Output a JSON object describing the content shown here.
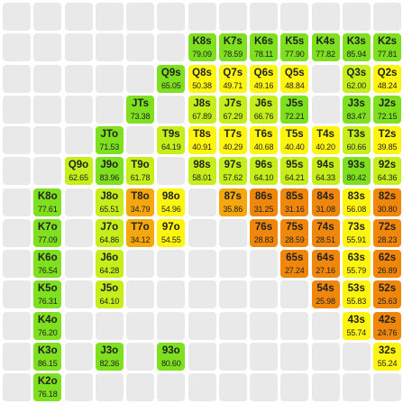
{
  "colors": {
    "empty": "#e9e9e9",
    "green": "#7ee01e",
    "yellow_green": "#c5ee1a",
    "yellow": "#fdf510",
    "orange": "#f5a70c",
    "dark_orange": "#f0870a"
  },
  "cells": [
    {
      "row": 0,
      "col": 0,
      "hand": "",
      "value": "",
      "color": ""
    },
    {
      "row": 1,
      "col": 6,
      "hand": "K8s",
      "value": "79.09",
      "color": "#7ee01e"
    },
    {
      "row": 1,
      "col": 7,
      "hand": "K7s",
      "value": "78.59",
      "color": "#7ee01e"
    },
    {
      "row": 1,
      "col": 8,
      "hand": "K6s",
      "value": "78.11",
      "color": "#7ee01e"
    },
    {
      "row": 1,
      "col": 9,
      "hand": "K5s",
      "value": "77.90",
      "color": "#7ee01e"
    },
    {
      "row": 1,
      "col": 10,
      "hand": "K4s",
      "value": "77.82",
      "color": "#7ee01e"
    },
    {
      "row": 1,
      "col": 11,
      "hand": "K3s",
      "value": "85.94",
      "color": "#7ee01e"
    },
    {
      "row": 1,
      "col": 12,
      "hand": "K2s",
      "value": "77.81",
      "color": "#7ee01e"
    },
    {
      "row": 2,
      "col": 5,
      "hand": "Q9s",
      "value": "65.05",
      "color": "#7ee01e"
    },
    {
      "row": 2,
      "col": 6,
      "hand": "Q8s",
      "value": "50.38",
      "color": "#fdf510"
    },
    {
      "row": 2,
      "col": 7,
      "hand": "Q7s",
      "value": "49.71",
      "color": "#fdf510"
    },
    {
      "row": 2,
      "col": 8,
      "hand": "Q6s",
      "value": "49.16",
      "color": "#fdf510"
    },
    {
      "row": 2,
      "col": 9,
      "hand": "Q5s",
      "value": "48.84",
      "color": "#fdf510"
    },
    {
      "row": 2,
      "col": 11,
      "hand": "Q3s",
      "value": "62.00",
      "color": "#c5ee1a"
    },
    {
      "row": 2,
      "col": 12,
      "hand": "Q2s",
      "value": "48.24",
      "color": "#fdf510"
    },
    {
      "row": 3,
      "col": 4,
      "hand": "JTs",
      "value": "73.38",
      "color": "#7ee01e"
    },
    {
      "row": 3,
      "col": 6,
      "hand": "J8s",
      "value": "67.89",
      "color": "#c5ee1a"
    },
    {
      "row": 3,
      "col": 7,
      "hand": "J7s",
      "value": "67.29",
      "color": "#c5ee1a"
    },
    {
      "row": 3,
      "col": 8,
      "hand": "J6s",
      "value": "66.76",
      "color": "#c5ee1a"
    },
    {
      "row": 3,
      "col": 9,
      "hand": "J5s",
      "value": "72.21",
      "color": "#7ee01e"
    },
    {
      "row": 3,
      "col": 11,
      "hand": "J3s",
      "value": "83.47",
      "color": "#7ee01e"
    },
    {
      "row": 3,
      "col": 12,
      "hand": "J2s",
      "value": "72.15",
      "color": "#7ee01e"
    },
    {
      "row": 4,
      "col": 3,
      "hand": "JTo",
      "value": "71.53",
      "color": "#7ee01e"
    },
    {
      "row": 4,
      "col": 5,
      "hand": "T9s",
      "value": "64.19",
      "color": "#c5ee1a"
    },
    {
      "row": 4,
      "col": 6,
      "hand": "T8s",
      "value": "40.91",
      "color": "#fdf510"
    },
    {
      "row": 4,
      "col": 7,
      "hand": "T7s",
      "value": "40.29",
      "color": "#fdf510"
    },
    {
      "row": 4,
      "col": 8,
      "hand": "T6s",
      "value": "40.68",
      "color": "#fdf510"
    },
    {
      "row": 4,
      "col": 9,
      "hand": "T5s",
      "value": "40.40",
      "color": "#fdf510"
    },
    {
      "row": 4,
      "col": 10,
      "hand": "T4s",
      "value": "40.20",
      "color": "#fdf510"
    },
    {
      "row": 4,
      "col": 11,
      "hand": "T3s",
      "value": "60.66",
      "color": "#c5ee1a"
    },
    {
      "row": 4,
      "col": 12,
      "hand": "T2s",
      "value": "39.85",
      "color": "#fdf510"
    },
    {
      "row": 5,
      "col": 2,
      "hand": "Q9o",
      "value": "62.65",
      "color": "#c5ee1a"
    },
    {
      "row": 5,
      "col": 3,
      "hand": "J9o",
      "value": "83.96",
      "color": "#7ee01e"
    },
    {
      "row": 5,
      "col": 4,
      "hand": "T9o",
      "value": "61.78",
      "color": "#c5ee1a"
    },
    {
      "row": 5,
      "col": 6,
      "hand": "98s",
      "value": "58.01",
      "color": "#c5ee1a"
    },
    {
      "row": 5,
      "col": 7,
      "hand": "97s",
      "value": "57.62",
      "color": "#c5ee1a"
    },
    {
      "row": 5,
      "col": 8,
      "hand": "96s",
      "value": "64.10",
      "color": "#c5ee1a"
    },
    {
      "row": 5,
      "col": 9,
      "hand": "95s",
      "value": "64.21",
      "color": "#c5ee1a"
    },
    {
      "row": 5,
      "col": 10,
      "hand": "94s",
      "value": "64.33",
      "color": "#c5ee1a"
    },
    {
      "row": 5,
      "col": 11,
      "hand": "93s",
      "value": "80.42",
      "color": "#7ee01e"
    },
    {
      "row": 5,
      "col": 12,
      "hand": "92s",
      "value": "64.36",
      "color": "#c5ee1a"
    },
    {
      "row": 6,
      "col": 1,
      "hand": "K8o",
      "value": "77.61",
      "color": "#7ee01e"
    },
    {
      "row": 6,
      "col": 3,
      "hand": "J8o",
      "value": "65.51",
      "color": "#c5ee1a"
    },
    {
      "row": 6,
      "col": 4,
      "hand": "T8o",
      "value": "34.79",
      "color": "#f5a70c"
    },
    {
      "row": 6,
      "col": 5,
      "hand": "98o",
      "value": "54.96",
      "color": "#fdf510"
    },
    {
      "row": 6,
      "col": 7,
      "hand": "87s",
      "value": "35.86",
      "color": "#f5a70c"
    },
    {
      "row": 6,
      "col": 8,
      "hand": "86s",
      "value": "31.25",
      "color": "#f0870a"
    },
    {
      "row": 6,
      "col": 9,
      "hand": "85s",
      "value": "31.16",
      "color": "#f0870a"
    },
    {
      "row": 6,
      "col": 10,
      "hand": "84s",
      "value": "31.08",
      "color": "#f0870a"
    },
    {
      "row": 6,
      "col": 11,
      "hand": "83s",
      "value": "56.08",
      "color": "#fdf510"
    },
    {
      "row": 6,
      "col": 12,
      "hand": "82s",
      "value": "30.80",
      "color": "#f0870a"
    },
    {
      "row": 7,
      "col": 1,
      "hand": "K7o",
      "value": "77.09",
      "color": "#7ee01e"
    },
    {
      "row": 7,
      "col": 3,
      "hand": "J7o",
      "value": "64.86",
      "color": "#c5ee1a"
    },
    {
      "row": 7,
      "col": 4,
      "hand": "T7o",
      "value": "34.12",
      "color": "#f5a70c"
    },
    {
      "row": 7,
      "col": 5,
      "hand": "97o",
      "value": "54.55",
      "color": "#fdf510"
    },
    {
      "row": 7,
      "col": 8,
      "hand": "76s",
      "value": "28.83",
      "color": "#f0870a"
    },
    {
      "row": 7,
      "col": 9,
      "hand": "75s",
      "value": "28.59",
      "color": "#f0870a"
    },
    {
      "row": 7,
      "col": 10,
      "hand": "74s",
      "value": "28.51",
      "color": "#f0870a"
    },
    {
      "row": 7,
      "col": 11,
      "hand": "73s",
      "value": "55.91",
      "color": "#fdf510"
    },
    {
      "row": 7,
      "col": 12,
      "hand": "72s",
      "value": "28.23",
      "color": "#f0870a"
    },
    {
      "row": 8,
      "col": 1,
      "hand": "K6o",
      "value": "76.54",
      "color": "#7ee01e"
    },
    {
      "row": 8,
      "col": 3,
      "hand": "J6o",
      "value": "64.28",
      "color": "#c5ee1a"
    },
    {
      "row": 8,
      "col": 9,
      "hand": "65s",
      "value": "27.24",
      "color": "#f0870a"
    },
    {
      "row": 8,
      "col": 10,
      "hand": "64s",
      "value": "27.16",
      "color": "#f0870a"
    },
    {
      "row": 8,
      "col": 11,
      "hand": "63s",
      "value": "55.79",
      "color": "#fdf510"
    },
    {
      "row": 8,
      "col": 12,
      "hand": "62s",
      "value": "26.89",
      "color": "#f0870a"
    },
    {
      "row": 9,
      "col": 1,
      "hand": "K5o",
      "value": "76.31",
      "color": "#7ee01e"
    },
    {
      "row": 9,
      "col": 3,
      "hand": "J5o",
      "value": "64.10",
      "color": "#c5ee1a"
    },
    {
      "row": 9,
      "col": 10,
      "hand": "54s",
      "value": "25.98",
      "color": "#f0870a"
    },
    {
      "row": 9,
      "col": 11,
      "hand": "53s",
      "value": "55.83",
      "color": "#fdf510"
    },
    {
      "row": 9,
      "col": 12,
      "hand": "52s",
      "value": "25.63",
      "color": "#f0870a"
    },
    {
      "row": 10,
      "col": 1,
      "hand": "K4o",
      "value": "76.20",
      "color": "#7ee01e"
    },
    {
      "row": 10,
      "col": 11,
      "hand": "43s",
      "value": "55.74",
      "color": "#fdf510"
    },
    {
      "row": 10,
      "col": 12,
      "hand": "42s",
      "value": "24.76",
      "color": "#f0870a"
    },
    {
      "row": 11,
      "col": 1,
      "hand": "K3o",
      "value": "86.15",
      "color": "#7ee01e"
    },
    {
      "row": 11,
      "col": 3,
      "hand": "J3o",
      "value": "82.36",
      "color": "#7ee01e"
    },
    {
      "row": 11,
      "col": 5,
      "hand": "93o",
      "value": "80.60",
      "color": "#7ee01e"
    },
    {
      "row": 11,
      "col": 12,
      "hand": "32s",
      "value": "55.24",
      "color": "#fdf510"
    },
    {
      "row": 12,
      "col": 1,
      "hand": "K2o",
      "value": "76.18",
      "color": "#7ee01e"
    }
  ]
}
